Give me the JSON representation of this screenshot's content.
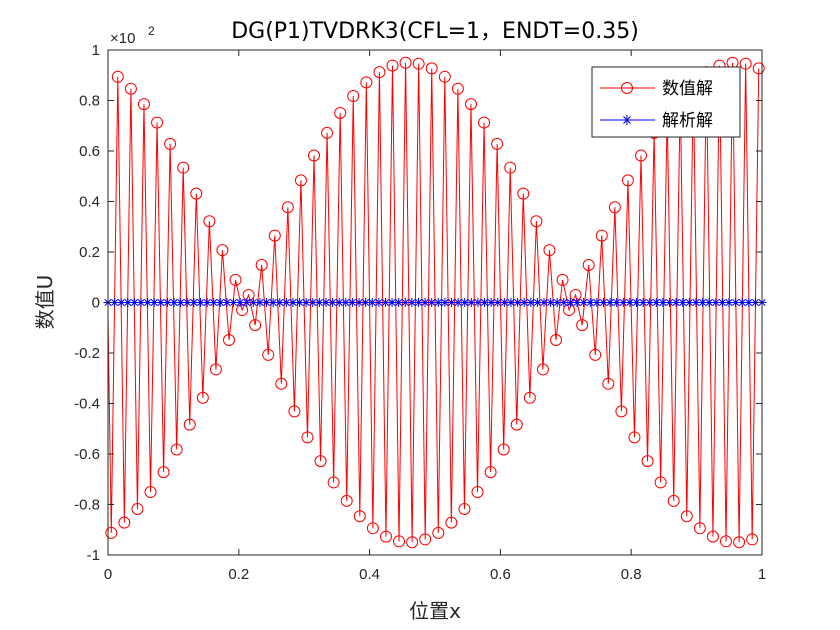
{
  "chart_data": {
    "type": "line",
    "title": "DG(P1)TVDRK3(CFL=1，ENDT=0.35)",
    "xlabel": "位置x",
    "ylabel": "数值U",
    "exponent_label": "×10",
    "exponent_power": "2",
    "xlim": [
      0,
      1
    ],
    "ylim": [
      -1,
      1
    ],
    "y_scale_factor": 100,
    "x_ticks": [
      0,
      0.2,
      0.4,
      0.6,
      0.8,
      1
    ],
    "x_tick_labels": [
      "0",
      "0.2",
      "0.4",
      "0.6",
      "0.8",
      "1"
    ],
    "y_ticks": [
      -1,
      -0.8,
      -0.6,
      -0.4,
      -0.2,
      0,
      0.2,
      0.4,
      0.6,
      0.8,
      1
    ],
    "y_tick_labels": [
      "-1",
      "-0.8",
      "-0.6",
      "-0.4",
      "-0.2",
      "0",
      "0.2",
      "0.4",
      "0.6",
      "0.8",
      "1"
    ],
    "grid": false,
    "legend_position": "top-right",
    "series": [
      {
        "name": "数值解",
        "marker": "circle",
        "color": "#ff0000",
        "pattern": "alternating sign between neighbouring points, envelope magnitude 95*|cos(2*pi*(x-0.46))| (x102 units), 100 points",
        "n_points": 100
      },
      {
        "name": "解析解",
        "marker": "star",
        "color": "#0000ff",
        "constant_value": 0,
        "n_points": 100
      }
    ]
  }
}
